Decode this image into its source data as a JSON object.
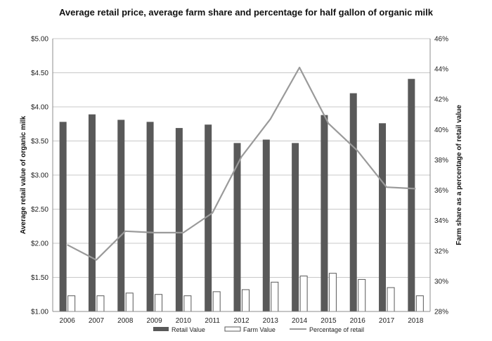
{
  "chart_data": {
    "type": "bar",
    "title": "Average retail price, average farm share and percentage for half gallon of organic milk",
    "ylabel": "Average retail value of organic milk",
    "y2label": "Farm share as a percentage of retail value",
    "categories": [
      "2006",
      "2007",
      "2008",
      "2009",
      "2010",
      "2011",
      "2012",
      "2013",
      "2014",
      "2015",
      "2016",
      "2017",
      "2018"
    ],
    "ylim": [
      1.0,
      5.0
    ],
    "y_ticks": [
      1.0,
      1.5,
      2.0,
      2.5,
      3.0,
      3.5,
      4.0,
      4.5,
      5.0
    ],
    "y_tick_labels": [
      "$1.00",
      "$1.50",
      "$2.00",
      "$2.50",
      "$3.00",
      "$3.50",
      "$4.00",
      "$4.50",
      "$5.00"
    ],
    "y2lim": [
      28,
      46
    ],
    "y2_ticks": [
      28,
      30,
      32,
      34,
      36,
      38,
      40,
      42,
      44,
      46
    ],
    "y2_tick_labels": [
      "28%",
      "30%",
      "32%",
      "34%",
      "36%",
      "38%",
      "40%",
      "42%",
      "44%",
      "46%"
    ],
    "grid": true,
    "legend_position": "bottom",
    "series": [
      {
        "name": "Retail Value",
        "kind": "bar",
        "axis": "left",
        "color": "#595959",
        "values": [
          3.78,
          3.89,
          3.81,
          3.78,
          3.69,
          3.74,
          3.47,
          3.52,
          3.47,
          3.88,
          4.2,
          3.76,
          4.41
        ]
      },
      {
        "name": "Farm Value",
        "kind": "bar",
        "axis": "left",
        "color": "#ffffff",
        "stroke": "#595959",
        "values": [
          1.23,
          1.23,
          1.27,
          1.25,
          1.23,
          1.29,
          1.32,
          1.43,
          1.52,
          1.56,
          1.47,
          1.35,
          1.23
        ]
      },
      {
        "name": "Percentage of retail",
        "kind": "line",
        "axis": "right",
        "color": "#9a9a9a",
        "values": [
          32.4,
          31.4,
          33.3,
          33.2,
          33.2,
          34.5,
          38.2,
          40.7,
          44.1,
          40.4,
          38.6,
          36.2,
          36.1
        ]
      }
    ]
  }
}
